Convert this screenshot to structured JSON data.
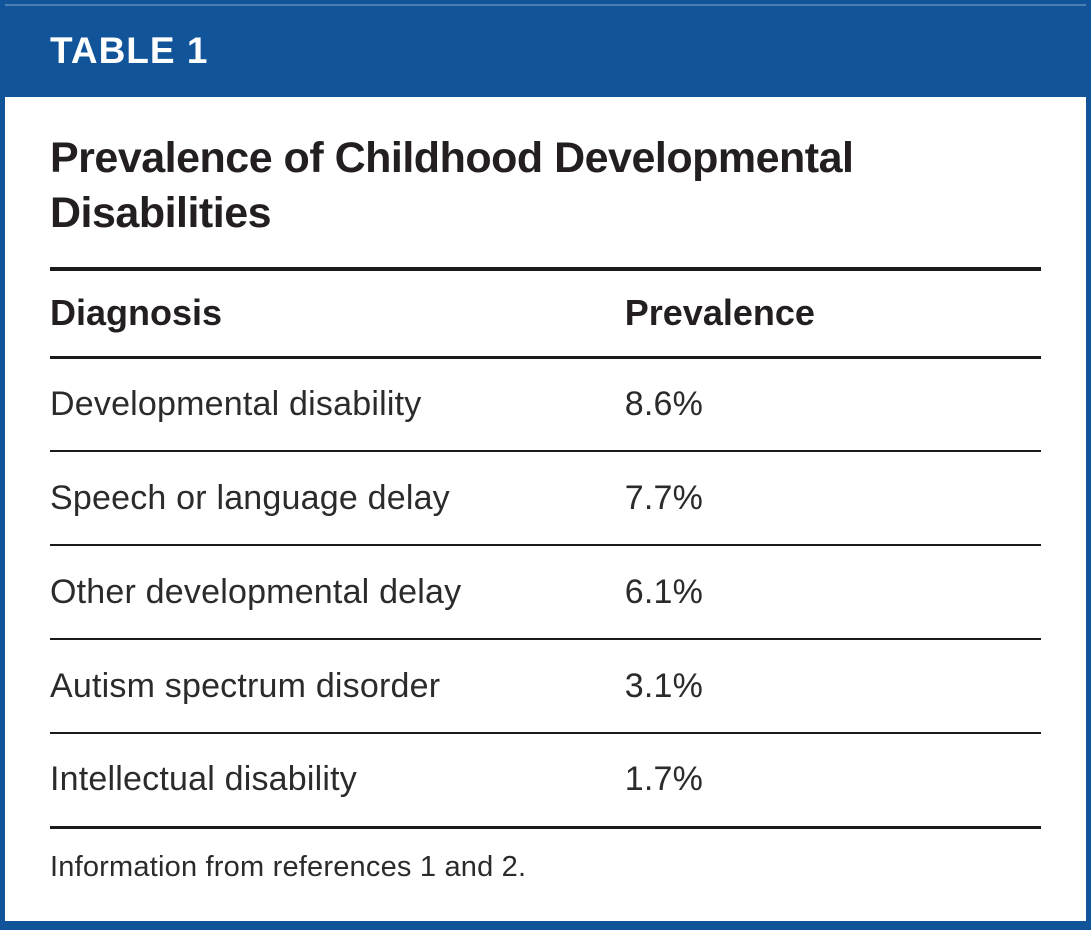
{
  "header": {
    "label": "TABLE 1"
  },
  "title": "Prevalence of Childhood Developmental Disabilities",
  "table": {
    "columns": [
      "Diagnosis",
      "Prevalence"
    ],
    "rows": [
      {
        "diagnosis": "Developmental disability",
        "prevalence": "8.6%"
      },
      {
        "diagnosis": "Speech or language delay",
        "prevalence": "7.7%"
      },
      {
        "diagnosis": "Other developmental delay",
        "prevalence": "6.1%"
      },
      {
        "diagnosis": "Autism spectrum disorder",
        "prevalence": "3.1%"
      },
      {
        "diagnosis": "Intellectual disability",
        "prevalence": "1.7%"
      }
    ]
  },
  "footnote": "Information from references 1 and 2.",
  "colors": {
    "brand_blue": "#11549A",
    "text_dark": "#231F20"
  }
}
